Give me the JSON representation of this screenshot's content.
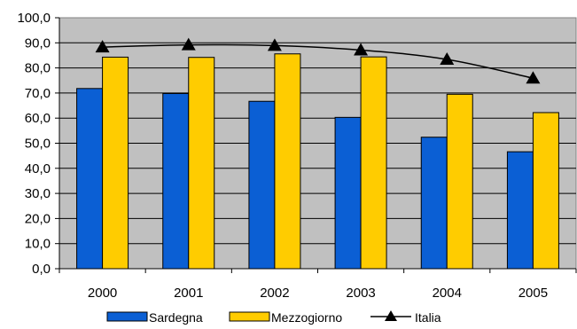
{
  "chart_data": {
    "type": "bar",
    "categories": [
      "2000",
      "2001",
      "2002",
      "2003",
      "2004",
      "2005"
    ],
    "series": [
      {
        "name": "Sardegna",
        "kind": "bar",
        "color": "#0b5fd4",
        "values": [
          71.8,
          69.8,
          66.7,
          60.3,
          52.4,
          46.6
        ]
      },
      {
        "name": "Mezzogiorno",
        "kind": "bar",
        "color": "#ffcc00",
        "values": [
          84.3,
          84.2,
          85.6,
          84.4,
          69.5,
          62.2
        ]
      },
      {
        "name": "Italia",
        "kind": "line",
        "marker": "triangle",
        "color": "#000000",
        "values": [
          88.3,
          89.2,
          88.9,
          87.1,
          83.4,
          75.9
        ]
      }
    ],
    "ylim": [
      0,
      100
    ],
    "yticks": [
      "0,0",
      "10,0",
      "20,0",
      "30,0",
      "40,0",
      "50,0",
      "60,0",
      "70,0",
      "80,0",
      "90,0",
      "100,0"
    ],
    "grid": true,
    "plot_background": "#c0c0c0",
    "legend_position": "bottom",
    "title": "",
    "xlabel": "",
    "ylabel": ""
  }
}
